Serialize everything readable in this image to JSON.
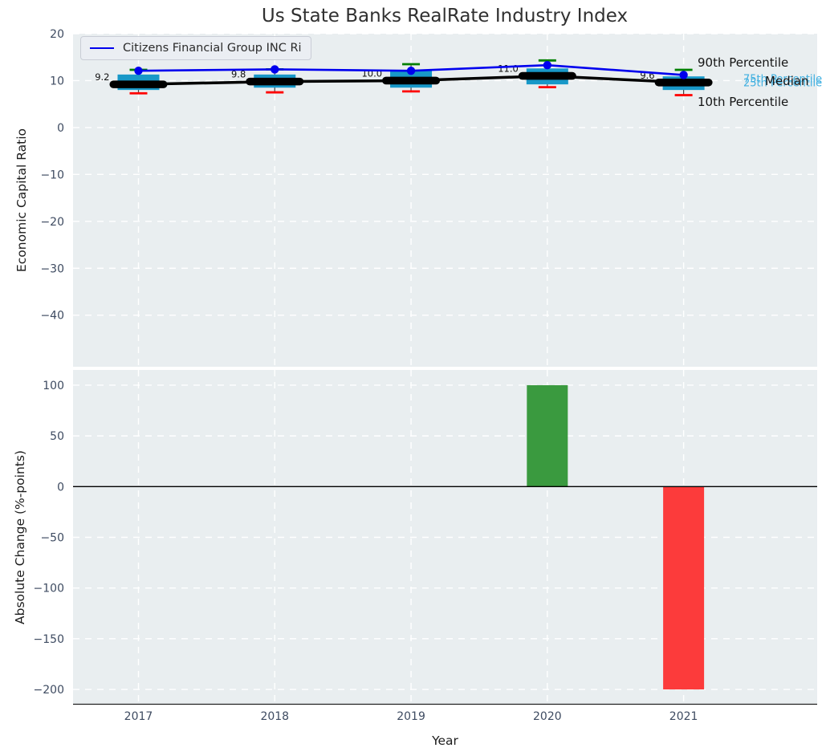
{
  "title": "Us State Banks RealRate Industry Index",
  "legend": {
    "label": "Citizens Financial Group INC Ri",
    "line_color": "#0000ee"
  },
  "annotations": {
    "p90": "90th Percentile",
    "p75": "75th Percentile",
    "median": "Median",
    "p25": "25th Percentile",
    "p10": "10th Percentile"
  },
  "chart_data": [
    {
      "type": "line",
      "panel": "top",
      "title": "Us State Banks RealRate Industry Index",
      "ylabel": "Economic Capital Ratio",
      "x_categories": [
        "2017",
        "2018",
        "2019",
        "2020",
        "2021"
      ],
      "ylim": [
        -51,
        20
      ],
      "yticks": [
        20,
        10,
        0,
        -10,
        -20,
        -30,
        -40
      ],
      "grid": true,
      "legend_position": "upper left",
      "series": [
        {
          "name": "Citizens Financial Group INC Ri",
          "type": "line",
          "marker": "circle",
          "color": "#0000ee",
          "values": [
            12.1,
            12.4,
            12.1,
            13.3,
            11.2
          ]
        },
        {
          "name": "Median",
          "type": "line",
          "marker": "thick-dash",
          "color": "#000000",
          "values": [
            9.2,
            9.8,
            10.0,
            11.0,
            9.6
          ],
          "point_labels": [
            "9.2",
            "9.8",
            "10.0",
            "11.0",
            "9.6"
          ]
        }
      ],
      "percentile_bands": {
        "p90": [
          12.3,
          12.4,
          13.5,
          14.3,
          12.3
        ],
        "p75": [
          11.3,
          11.3,
          12.3,
          12.6,
          10.9
        ],
        "p25": [
          8.0,
          8.5,
          8.5,
          9.2,
          8.0
        ],
        "p10": [
          7.3,
          7.5,
          7.7,
          8.6,
          6.9
        ]
      },
      "style": {
        "box_color": "#1898c8",
        "p90_cap_color": "#008000",
        "p10_cap_color": "#ff0000",
        "whisker_color": "#444444",
        "background": "#e9eef0",
        "grid_color": "#ffffff"
      }
    },
    {
      "type": "bar",
      "panel": "bottom",
      "xlabel": "Year",
      "ylabel": "Absolute Change (%-points)",
      "categories": [
        "2017",
        "2018",
        "2019",
        "2020",
        "2021"
      ],
      "values": [
        0,
        0,
        0,
        100,
        -200
      ],
      "ylim": [
        -215,
        115
      ],
      "yticks": [
        100,
        50,
        0,
        -50,
        -100,
        -150,
        -200
      ],
      "grid": true,
      "zero_line": true,
      "positive_color": "#3a9a3f",
      "negative_color": "#fc3b3b",
      "background": "#e9eef0",
      "grid_color": "#ffffff"
    }
  ]
}
